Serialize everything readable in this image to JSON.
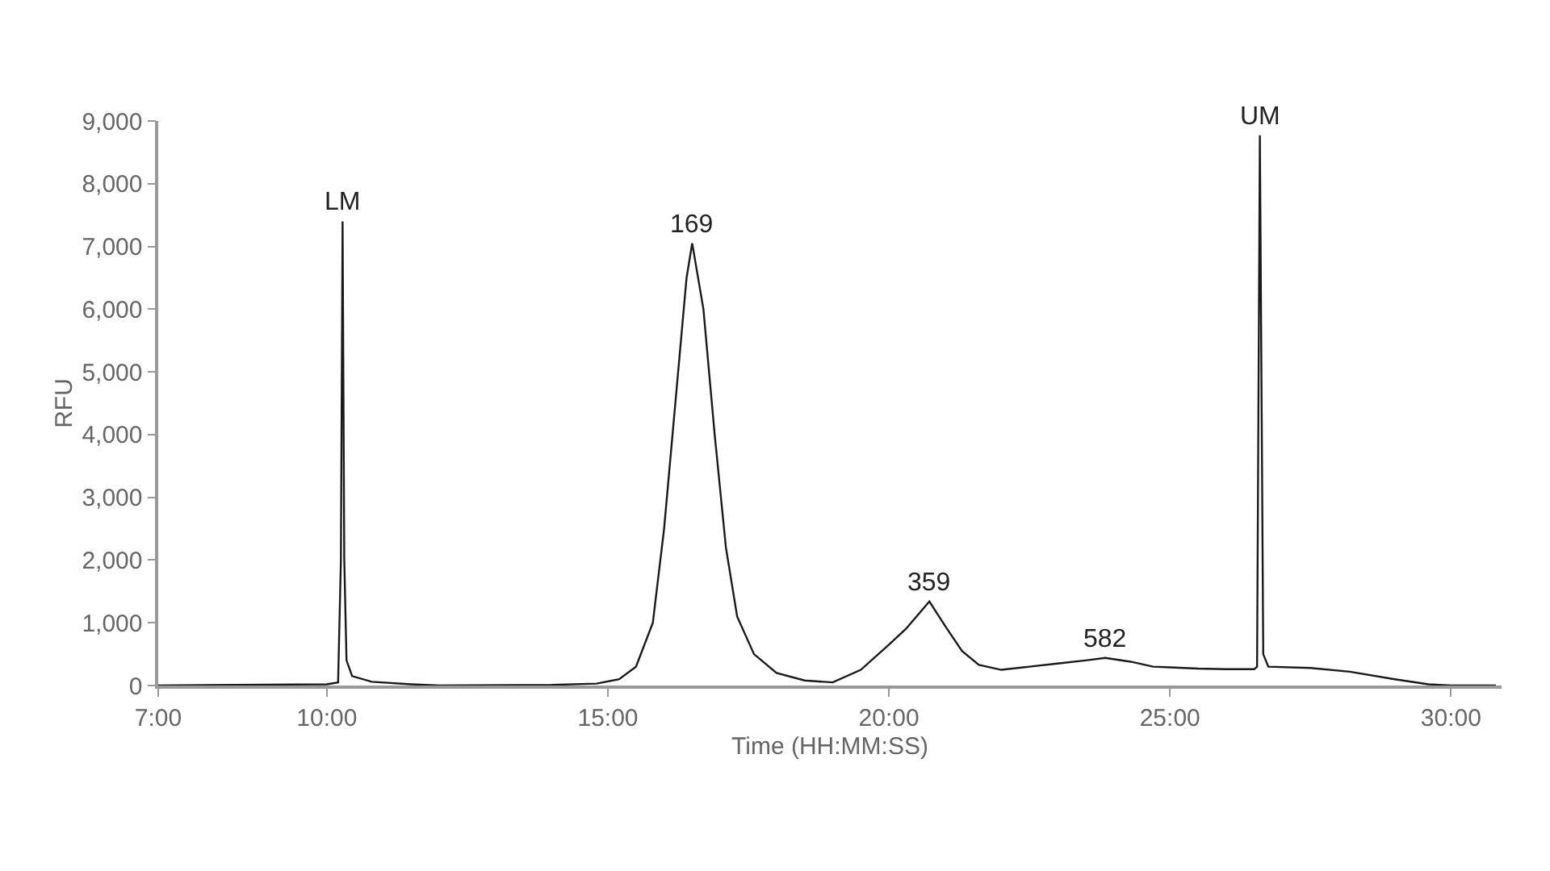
{
  "chart_data": {
    "type": "line",
    "xlabel": "Time (HH:MM:SS)",
    "ylabel": "RFU",
    "x": [
      7.0,
      10.0,
      10.2,
      10.25,
      10.28,
      10.31,
      10.35,
      10.45,
      10.8,
      11.5,
      12.0,
      14.0,
      14.8,
      15.2,
      15.5,
      15.8,
      16.0,
      16.2,
      16.4,
      16.5,
      16.7,
      16.9,
      17.1,
      17.3,
      17.6,
      18.0,
      18.5,
      19.0,
      19.5,
      20.0,
      20.3,
      20.72,
      21.0,
      21.3,
      21.6,
      22.0,
      22.5,
      23.0,
      23.5,
      23.85,
      24.3,
      24.7,
      25.0,
      25.5,
      26.0,
      26.5,
      26.55,
      26.6,
      26.66,
      26.75,
      27.5,
      28.2,
      29.0,
      29.6,
      30.0,
      30.8
    ],
    "series": [
      {
        "color": "#1a1a1a",
        "values": [
          0,
          20,
          50,
          2000,
          7400,
          2000,
          400,
          150,
          60,
          20,
          0,
          10,
          30,
          100,
          300,
          1000,
          2500,
          4500,
          6500,
          7050,
          6000,
          4000,
          2200,
          1100,
          500,
          200,
          80,
          50,
          250,
          650,
          900,
          1340,
          950,
          550,
          330,
          250,
          300,
          350,
          400,
          440,
          380,
          300,
          290,
          270,
          260,
          260,
          300,
          8770,
          500,
          300,
          280,
          220,
          100,
          20,
          0,
          0
        ]
      }
    ],
    "annotations": [
      {
        "text": "LM",
        "x": 10.28,
        "y": 7400
      },
      {
        "text": "169",
        "x": 16.5,
        "y": 7050
      },
      {
        "text": "359",
        "x": 20.72,
        "y": 1340
      },
      {
        "text": "582",
        "x": 23.85,
        "y": 440
      },
      {
        "text": "UM",
        "x": 26.6,
        "y": 8770
      }
    ],
    "xlim": [
      7,
      30.9
    ],
    "xticks": [
      {
        "value": 7,
        "label": "7:00"
      },
      {
        "value": 10,
        "label": "10:00"
      },
      {
        "value": 15,
        "label": "15:00"
      },
      {
        "value": 20,
        "label": "20:00"
      },
      {
        "value": 25,
        "label": "25:00"
      },
      {
        "value": 30,
        "label": "30:00"
      }
    ],
    "ylim": [
      0,
      9000
    ],
    "yticks": [
      {
        "value": 0,
        "label": "0"
      },
      {
        "value": 1000,
        "label": "1,000"
      },
      {
        "value": 2000,
        "label": "2,000"
      },
      {
        "value": 3000,
        "label": "3,000"
      },
      {
        "value": 4000,
        "label": "4,000"
      },
      {
        "value": 5000,
        "label": "5,000"
      },
      {
        "value": 6000,
        "label": "6,000"
      },
      {
        "value": 7000,
        "label": "7,000"
      },
      {
        "value": 8000,
        "label": "8,000"
      },
      {
        "value": 9000,
        "label": "9,000"
      }
    ],
    "marker": "none",
    "line_style": "solid"
  }
}
